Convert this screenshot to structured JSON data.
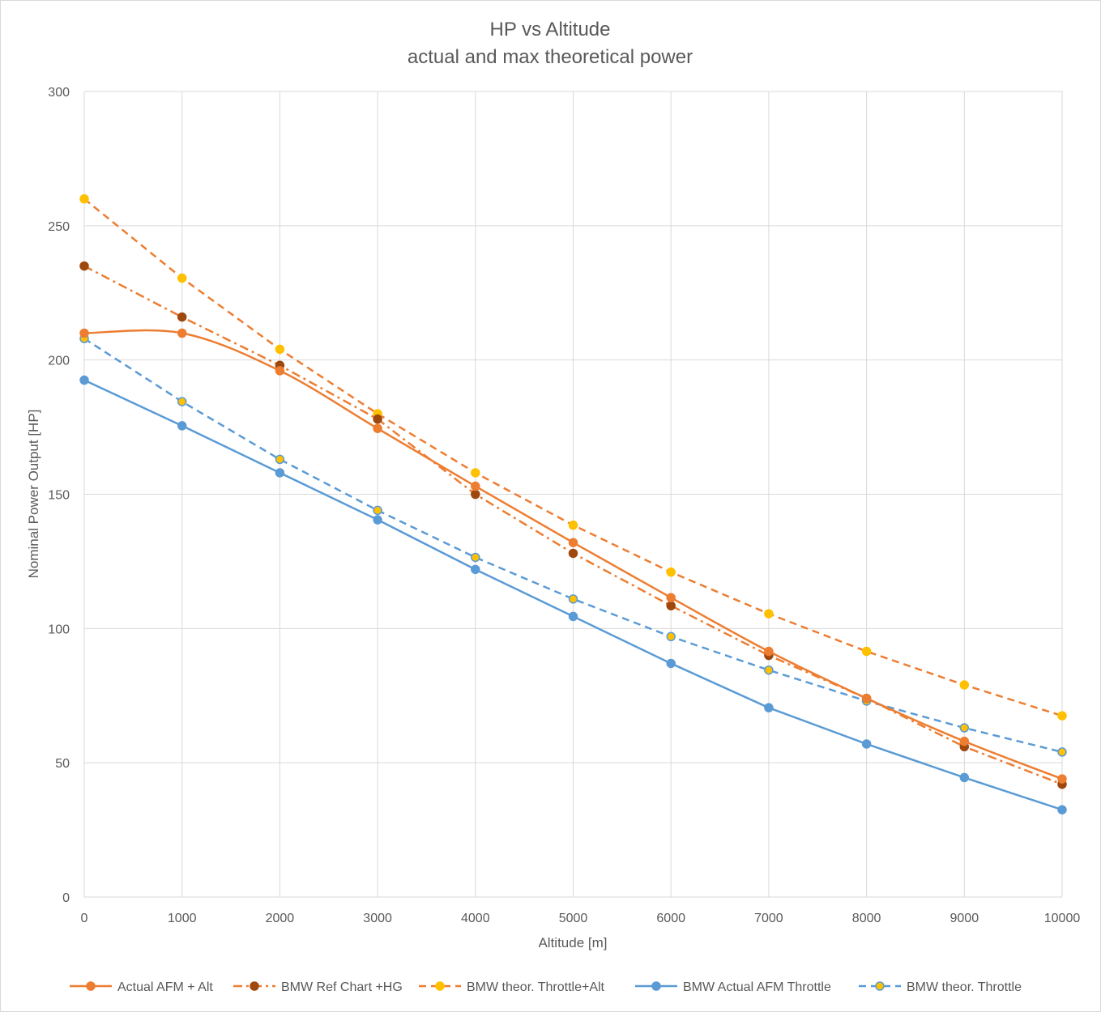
{
  "chart_data": {
    "type": "line",
    "title": "HP vs Altitude",
    "subtitle": "actual and max theoretical power",
    "xlabel": "Altitude [m]",
    "ylabel": "Nominal Power Output [HP]",
    "xlim": [
      0,
      10000
    ],
    "ylim": [
      0,
      300
    ],
    "x_ticks": [
      0,
      1000,
      2000,
      3000,
      4000,
      5000,
      6000,
      7000,
      8000,
      9000,
      10000
    ],
    "y_ticks": [
      0,
      50,
      100,
      150,
      200,
      250,
      300
    ],
    "grid": true,
    "legend_position": "bottom",
    "x": [
      0,
      1000,
      2000,
      3000,
      4000,
      5000,
      6000,
      7000,
      8000,
      9000,
      10000
    ],
    "series": [
      {
        "name": "Actual AFM + Alt",
        "values": [
          210,
          210,
          196,
          174.5,
          153,
          132,
          111.5,
          91.5,
          74,
          58,
          44
        ],
        "color": "#ED7D31",
        "line": "solid",
        "smooth": true,
        "marker_fill": "#ED7D31",
        "marker_stroke": "#ED7D31"
      },
      {
        "name": "BMW Ref Chart +HG",
        "values": [
          235,
          216,
          198,
          178,
          150,
          128,
          108.5,
          90,
          74,
          56,
          42
        ],
        "color": "#ED7D31",
        "line": "dashdot",
        "smooth": false,
        "marker_fill": "#9E480E",
        "marker_stroke": "#9E480E"
      },
      {
        "name": "BMW theor. Throttle+Alt",
        "values": [
          260,
          230.5,
          204,
          180,
          158,
          138.5,
          121,
          105.5,
          91.5,
          79,
          67.5
        ],
        "color": "#ED7D31",
        "line": "dashed",
        "smooth": false,
        "marker_fill": "#FFC000",
        "marker_stroke": "#FFC000"
      },
      {
        "name": "BMW Actual AFM Throttle",
        "values": [
          192.5,
          175.5,
          158,
          140.5,
          122,
          104.5,
          87,
          70.5,
          57,
          44.5,
          32.5
        ],
        "color": "#5B9BD5",
        "line": "solid",
        "smooth": false,
        "marker_fill": "#5B9BD5",
        "marker_stroke": "#5B9BD5"
      },
      {
        "name": "BMW theor. Throttle",
        "values": [
          208,
          184.5,
          163,
          144,
          126.5,
          111,
          97,
          84.5,
          73,
          63,
          54
        ],
        "color": "#5B9BD5",
        "line": "dashed",
        "smooth": false,
        "marker_fill": "#FFC000",
        "marker_stroke": "#5B9BD5"
      }
    ]
  }
}
